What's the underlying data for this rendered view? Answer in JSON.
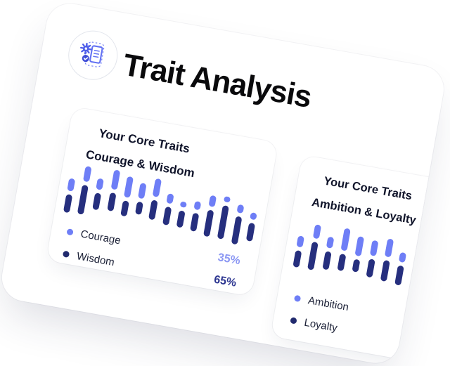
{
  "page": {
    "background": "#ffffff",
    "rotation_deg": 10
  },
  "header": {
    "title": "Trait Analysis",
    "icon": "analysis-document-icon"
  },
  "colors": {
    "bar_light": "#6E7EF6",
    "bar_dark": "#262F7E",
    "legend_dot_dark": "#212A6E",
    "pct_light": "#8B97F3",
    "pct_dark": "#2C3590",
    "title_text": "#0a0a0c",
    "card_text": "#10142a"
  },
  "cards": [
    {
      "title_line1": "Your Core Traits",
      "title_line2": "Courage & Wisdom",
      "legend": [
        {
          "label": "Courage",
          "color": "#6E7EF6"
        },
        {
          "label": "Wisdom",
          "color": "#212A6E"
        }
      ],
      "percentages": [
        {
          "value": "35%",
          "color": "#8B97F3"
        },
        {
          "value": "65%",
          "color": "#2C3590"
        }
      ]
    },
    {
      "title_line1": "Your Core Traits",
      "title_line2": "Ambition & Loyalty",
      "legend": [
        {
          "label": "Ambition",
          "color": "#6E7EF6"
        },
        {
          "label": "Loyalty",
          "color": "#212A6E"
        }
      ],
      "percentages": []
    }
  ],
  "chart_data": [
    {
      "type": "bar",
      "title": "Courage & Wisdom",
      "series": [
        {
          "name": "Courage",
          "color": "#6E7EF6",
          "percent": 35
        },
        {
          "name": "Wisdom",
          "color": "#262F7E",
          "percent": 65
        }
      ],
      "legend_position": "bottom-left",
      "axes": "none",
      "unit": "relative capsule heights (px)",
      "columns": [
        {
          "offset": 25,
          "light": 18,
          "dark": 26
        },
        {
          "offset": 4,
          "light": 22,
          "dark": 42
        },
        {
          "offset": 18,
          "light": 16,
          "dark": 24
        },
        {
          "offset": 2,
          "light": 28,
          "dark": 26
        },
        {
          "offset": 8,
          "light": 30,
          "dark": 22
        },
        {
          "offset": 14,
          "light": 22,
          "dark": 18
        },
        {
          "offset": 4,
          "light": 26,
          "dark": 28
        },
        {
          "offset": 22,
          "light": 14,
          "dark": 26
        },
        {
          "offset": 30,
          "light": 8,
          "dark": 24
        },
        {
          "offset": 26,
          "light": 12,
          "dark": 26
        },
        {
          "offset": 14,
          "light": 16,
          "dark": 38
        },
        {
          "offset": 12,
          "light": 8,
          "dark": 48
        },
        {
          "offset": 20,
          "light": 12,
          "dark": 40
        },
        {
          "offset": 28,
          "light": 10,
          "dark": 26
        }
      ]
    },
    {
      "type": "bar",
      "title": "Ambition & Loyalty",
      "series": [
        {
          "name": "Ambition",
          "color": "#6E7EF6"
        },
        {
          "name": "Loyalty",
          "color": "#262F7E"
        }
      ],
      "legend_position": "bottom-left",
      "axes": "none",
      "unit": "relative capsule heights (px)",
      "columns": [
        {
          "offset": 22,
          "light": 16,
          "dark": 24
        },
        {
          "offset": 2,
          "light": 20,
          "dark": 40
        },
        {
          "offset": 16,
          "light": 16,
          "dark": 26
        },
        {
          "offset": 0,
          "light": 32,
          "dark": 24
        },
        {
          "offset": 8,
          "light": 28,
          "dark": 18
        },
        {
          "offset": 10,
          "light": 22,
          "dark": 26
        },
        {
          "offset": 4,
          "light": 26,
          "dark": 30
        },
        {
          "offset": 20,
          "light": 14,
          "dark": 28
        },
        {
          "offset": 28,
          "light": 10,
          "dark": 24
        },
        {
          "offset": 22,
          "light": 12,
          "dark": 34
        }
      ]
    }
  ]
}
